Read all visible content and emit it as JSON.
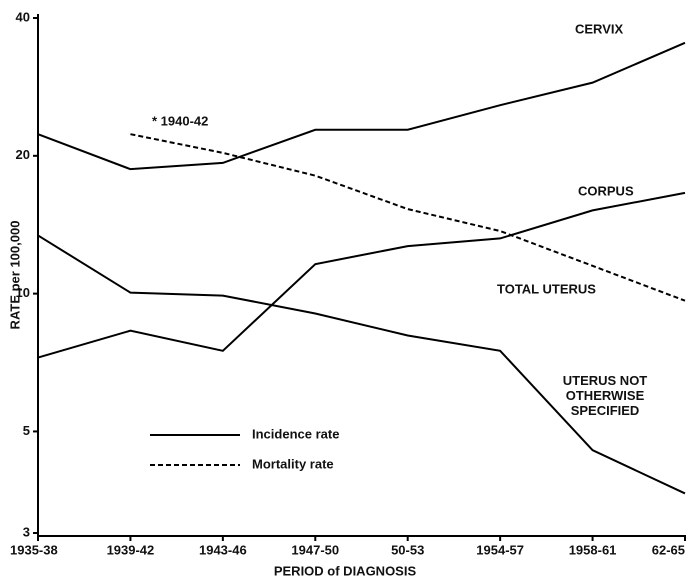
{
  "chart_data": {
    "type": "line",
    "x_label": "PERIOD of DIAGNOSIS",
    "y_label": "RATE per 100,000",
    "categories": [
      "1935-38",
      "1939-42",
      "1943-46",
      "1947-50",
      "50-53",
      "1954-57",
      "1958-61",
      "62-65"
    ],
    "log_y": true,
    "ylim": [
      3,
      40
    ],
    "yticks": [
      3,
      5,
      10,
      20,
      40
    ],
    "annotation": "* 1940-42",
    "series": [
      {
        "name": "CERVIX",
        "style": "solid",
        "color": "#000000",
        "values": [
          22.3,
          18.7,
          19.3,
          22.8,
          22.8,
          25.8,
          28.9,
          35.3
        ]
      },
      {
        "name": "CORPUS",
        "style": "solid",
        "color": "#000000",
        "values": [
          7.25,
          8.3,
          7.5,
          11.6,
          12.7,
          13.2,
          15.2,
          16.6
        ]
      },
      {
        "name": "TOTAL UTERUS",
        "style": "dashed",
        "color": "#000000",
        "values": [
          null,
          22.3,
          20.3,
          18.1,
          15.3,
          13.7,
          11.5,
          9.65
        ]
      },
      {
        "name": "UTERUS NOT OTHERWISE SPECIFIED",
        "style": "solid",
        "color": "#000000",
        "values": [
          13.4,
          10.05,
          9.9,
          9.05,
          8.1,
          7.5,
          4.55,
          3.66
        ]
      }
    ],
    "legend": [
      {
        "label": "Incidence rate",
        "style": "solid"
      },
      {
        "label": "Mortality rate",
        "style": "dashed"
      }
    ]
  }
}
